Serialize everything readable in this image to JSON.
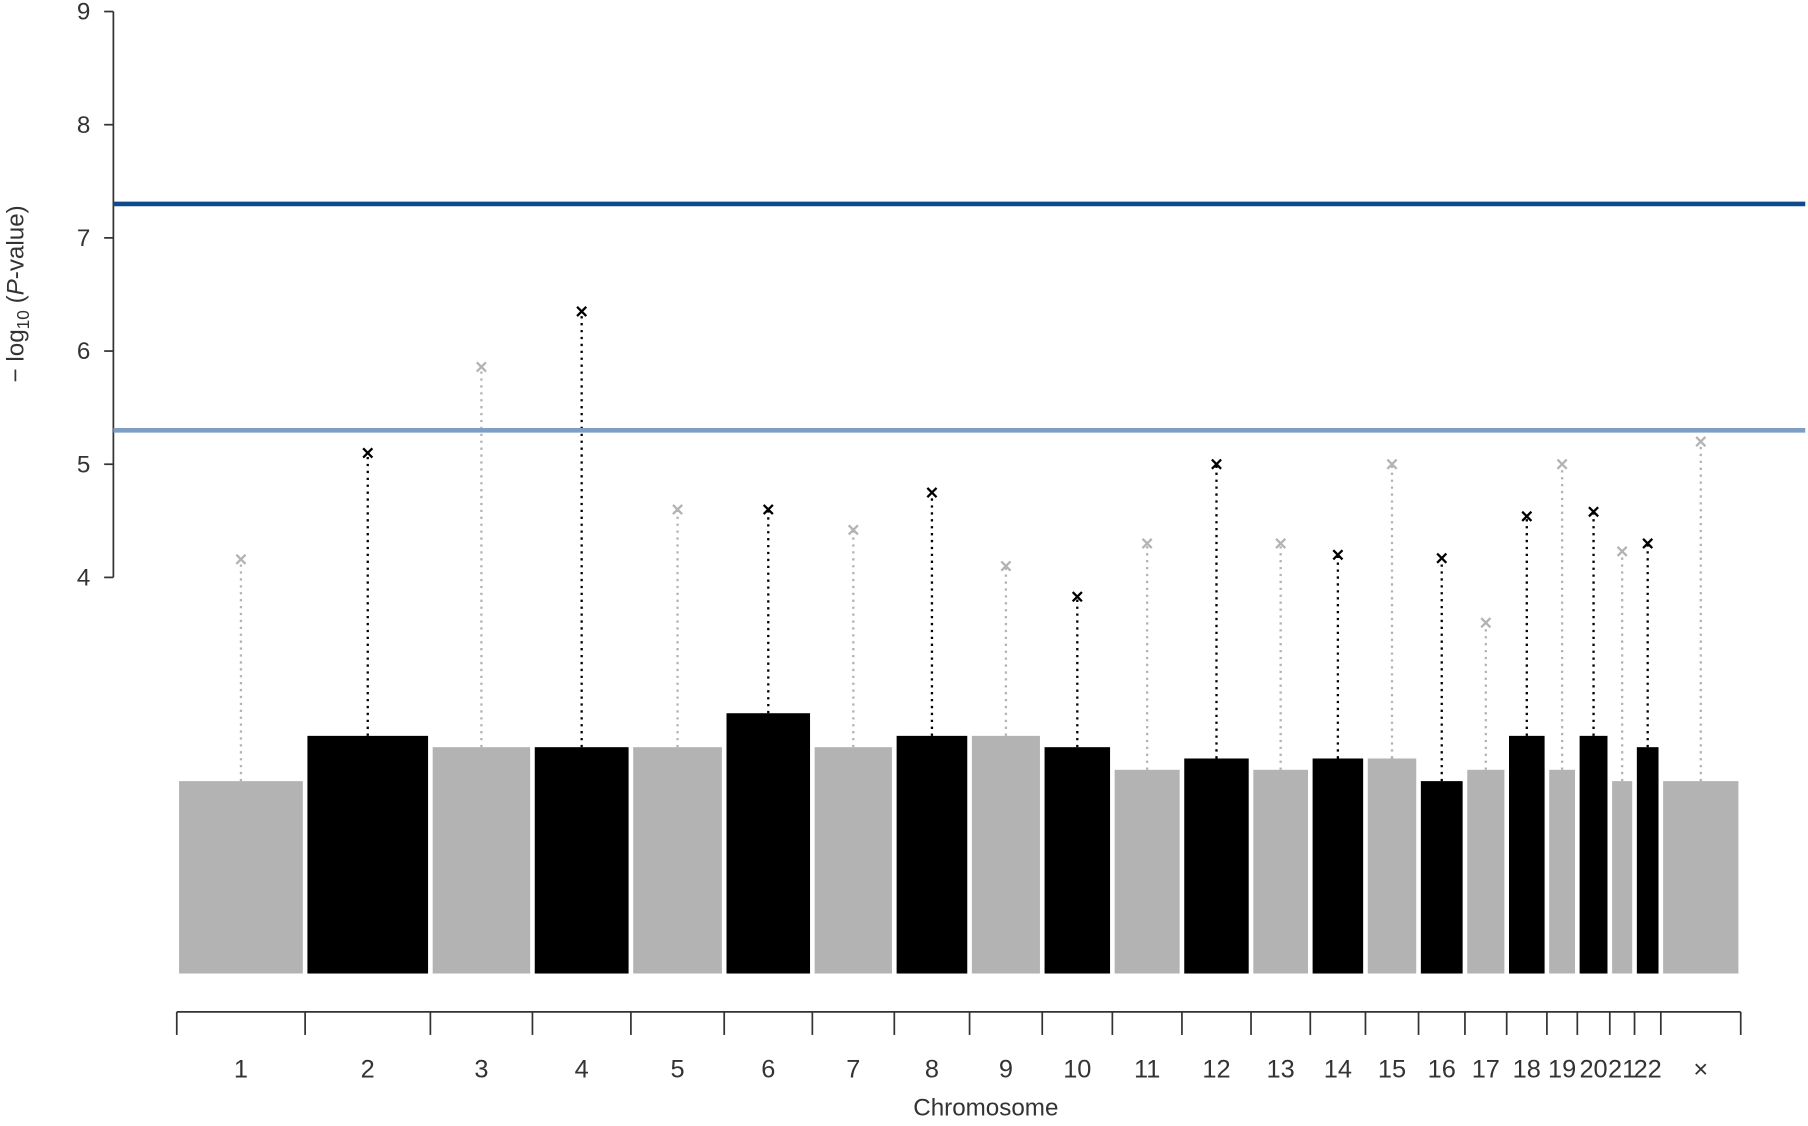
{
  "chart_data": {
    "type": "manhattan",
    "ylabel_parts": [
      "− log",
      "10",
      " (",
      "P",
      "-value)"
    ],
    "xlabel": "Chromosome",
    "categories": [
      "1",
      "2",
      "3",
      "4",
      "5",
      "6",
      "7",
      "8",
      "9",
      "10",
      "11",
      "12",
      "13",
      "14",
      "15",
      "16",
      "17",
      "18",
      "19",
      "20",
      "21",
      "22",
      "×"
    ],
    "length_mb": [
      249,
      243,
      198,
      191,
      181,
      171,
      159,
      146,
      141,
      136,
      135,
      134,
      115,
      107,
      103,
      90,
      81,
      78,
      59,
      63,
      48,
      51,
      155
    ],
    "bulk": [
      2.2,
      2.6,
      2.5,
      2.5,
      2.5,
      2.8,
      2.5,
      2.6,
      2.6,
      2.5,
      2.3,
      2.4,
      2.3,
      2.4,
      2.4,
      2.2,
      2.3,
      2.6,
      2.3,
      2.6,
      2.2,
      2.5,
      2.2
    ],
    "values": [
      4.16,
      5.1,
      5.86,
      6.35,
      4.6,
      4.6,
      4.42,
      4.75,
      4.1,
      3.83,
      4.3,
      5.0,
      4.3,
      4.2,
      5.0,
      4.17,
      3.6,
      4.54,
      5.0,
      4.58,
      4.23,
      4.3,
      5.2
    ],
    "colors": [
      "#b3b3b3",
      "#000000"
    ],
    "hlines": [
      {
        "value": 7.3,
        "color": "#0d4c8a"
      },
      {
        "value": 5.3,
        "color": "#7f9ec6"
      }
    ],
    "ylim": [
      0.5,
      9
    ],
    "yticks": [
      4,
      5,
      6,
      7,
      8,
      9
    ]
  }
}
